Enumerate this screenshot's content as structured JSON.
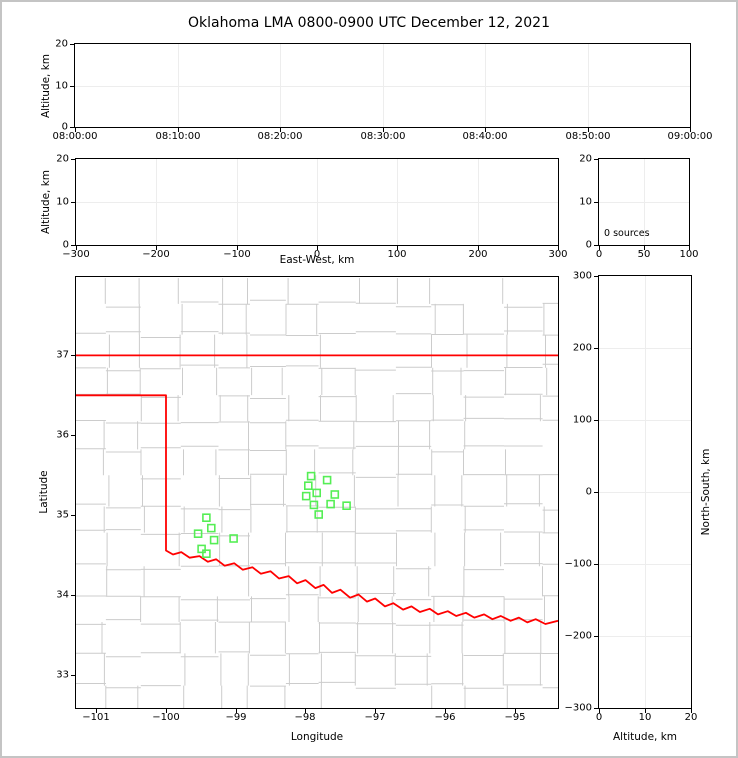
{
  "title": "Oklahoma LMA 0800-0900 UTC December 12, 2021",
  "chart_data": [
    {
      "id": "time_height",
      "type": "scatter",
      "title": "Oklahoma LMA 0800-0900 UTC December 12, 2021",
      "xlabel": "",
      "ylabel": "Altitude, km",
      "x_tick_labels": [
        "08:00:00",
        "08:10:00",
        "08:20:00",
        "08:30:00",
        "08:40:00",
        "08:50:00",
        "09:00:00"
      ],
      "ylim": [
        0,
        20
      ],
      "yticks": [
        0,
        10,
        20
      ],
      "grid": true,
      "points": []
    },
    {
      "id": "ew_height",
      "type": "scatter",
      "xlabel": "East-West, km",
      "ylabel": "Altitude, km",
      "xlim": [
        -300,
        300
      ],
      "xticks": [
        -300,
        -200,
        -100,
        0,
        100,
        200,
        300
      ],
      "ylim": [
        0,
        20
      ],
      "yticks": [
        0,
        10,
        20
      ],
      "grid": true,
      "points": []
    },
    {
      "id": "source_histogram",
      "type": "scatter",
      "annotation": "0 sources",
      "xlim": [
        0,
        100
      ],
      "xticks": [
        0,
        50,
        100
      ],
      "ylim": [
        0,
        20
      ],
      "yticks": [
        0,
        10,
        20
      ],
      "grid": true,
      "points": []
    },
    {
      "id": "map",
      "type": "scatter",
      "xlabel": "Longitude",
      "ylabel": "Latitude",
      "xlim": [
        -101.29,
        -94.38
      ],
      "xticks": [
        -101,
        -100,
        -99,
        -98,
        -97,
        -96,
        -95
      ],
      "ylim": [
        32.59,
        37.98
      ],
      "yticks": [
        33,
        34,
        35,
        36,
        37
      ],
      "grid": false,
      "colors": {
        "station": "#55ee55",
        "state_border": "#ff0000",
        "county_lines": "#cccccc"
      },
      "stations": [
        {
          "lon": -97.92,
          "lat": 35.49
        },
        {
          "lon": -97.69,
          "lat": 35.44
        },
        {
          "lon": -97.96,
          "lat": 35.37
        },
        {
          "lon": -97.84,
          "lat": 35.28
        },
        {
          "lon": -97.99,
          "lat": 35.24
        },
        {
          "lon": -97.58,
          "lat": 35.26
        },
        {
          "lon": -97.64,
          "lat": 35.14
        },
        {
          "lon": -97.88,
          "lat": 35.13
        },
        {
          "lon": -97.41,
          "lat": 35.12
        },
        {
          "lon": -97.81,
          "lat": 35.01
        },
        {
          "lon": -99.42,
          "lat": 34.97
        },
        {
          "lon": -99.35,
          "lat": 34.84
        },
        {
          "lon": -99.54,
          "lat": 34.77
        },
        {
          "lon": -99.31,
          "lat": 34.69
        },
        {
          "lon": -99.03,
          "lat": 34.71
        },
        {
          "lon": -99.49,
          "lat": 34.58
        },
        {
          "lon": -99.42,
          "lat": 34.52
        }
      ],
      "state_border": [
        [
          [
            -101.29,
            37.0
          ],
          [
            -94.38,
            37.0
          ]
        ],
        [
          [
            -101.29,
            36.5
          ],
          [
            -100.0,
            36.5
          ],
          [
            -100.0,
            34.56
          ],
          [
            -99.9,
            34.51
          ],
          [
            -99.78,
            34.54
          ],
          [
            -99.66,
            34.47
          ],
          [
            -99.52,
            34.49
          ],
          [
            -99.4,
            34.42
          ],
          [
            -99.28,
            34.45
          ],
          [
            -99.16,
            34.37
          ],
          [
            -99.02,
            34.4
          ],
          [
            -98.9,
            34.32
          ],
          [
            -98.76,
            34.35
          ],
          [
            -98.64,
            34.27
          ],
          [
            -98.5,
            34.3
          ],
          [
            -98.38,
            34.21
          ],
          [
            -98.24,
            34.24
          ],
          [
            -98.12,
            34.15
          ],
          [
            -98.0,
            34.19
          ],
          [
            -97.86,
            34.09
          ],
          [
            -97.74,
            34.13
          ],
          [
            -97.62,
            34.03
          ],
          [
            -97.5,
            34.07
          ],
          [
            -97.36,
            33.97
          ],
          [
            -97.24,
            34.01
          ],
          [
            -97.12,
            33.92
          ],
          [
            -97.0,
            33.96
          ],
          [
            -96.86,
            33.86
          ],
          [
            -96.74,
            33.9
          ],
          [
            -96.6,
            33.82
          ],
          [
            -96.48,
            33.86
          ],
          [
            -96.36,
            33.79
          ],
          [
            -96.22,
            33.83
          ],
          [
            -96.1,
            33.76
          ],
          [
            -95.96,
            33.8
          ],
          [
            -95.84,
            33.74
          ],
          [
            -95.7,
            33.78
          ],
          [
            -95.58,
            33.72
          ],
          [
            -95.44,
            33.76
          ],
          [
            -95.32,
            33.7
          ],
          [
            -95.2,
            33.74
          ],
          [
            -95.06,
            33.68
          ],
          [
            -94.94,
            33.72
          ],
          [
            -94.82,
            33.66
          ],
          [
            -94.7,
            33.7
          ],
          [
            -94.56,
            33.64
          ],
          [
            -94.38,
            33.68
          ]
        ]
      ]
    },
    {
      "id": "ns_height",
      "type": "scatter",
      "xlabel": "Altitude, km",
      "ylabel": "North-South, km",
      "xlim": [
        0,
        20
      ],
      "xticks": [
        0,
        10,
        20
      ],
      "ylim": [
        -300,
        300
      ],
      "yticks": [
        -300,
        -200,
        -100,
        0,
        100,
        200,
        300
      ],
      "grid": true,
      "points": []
    }
  ]
}
